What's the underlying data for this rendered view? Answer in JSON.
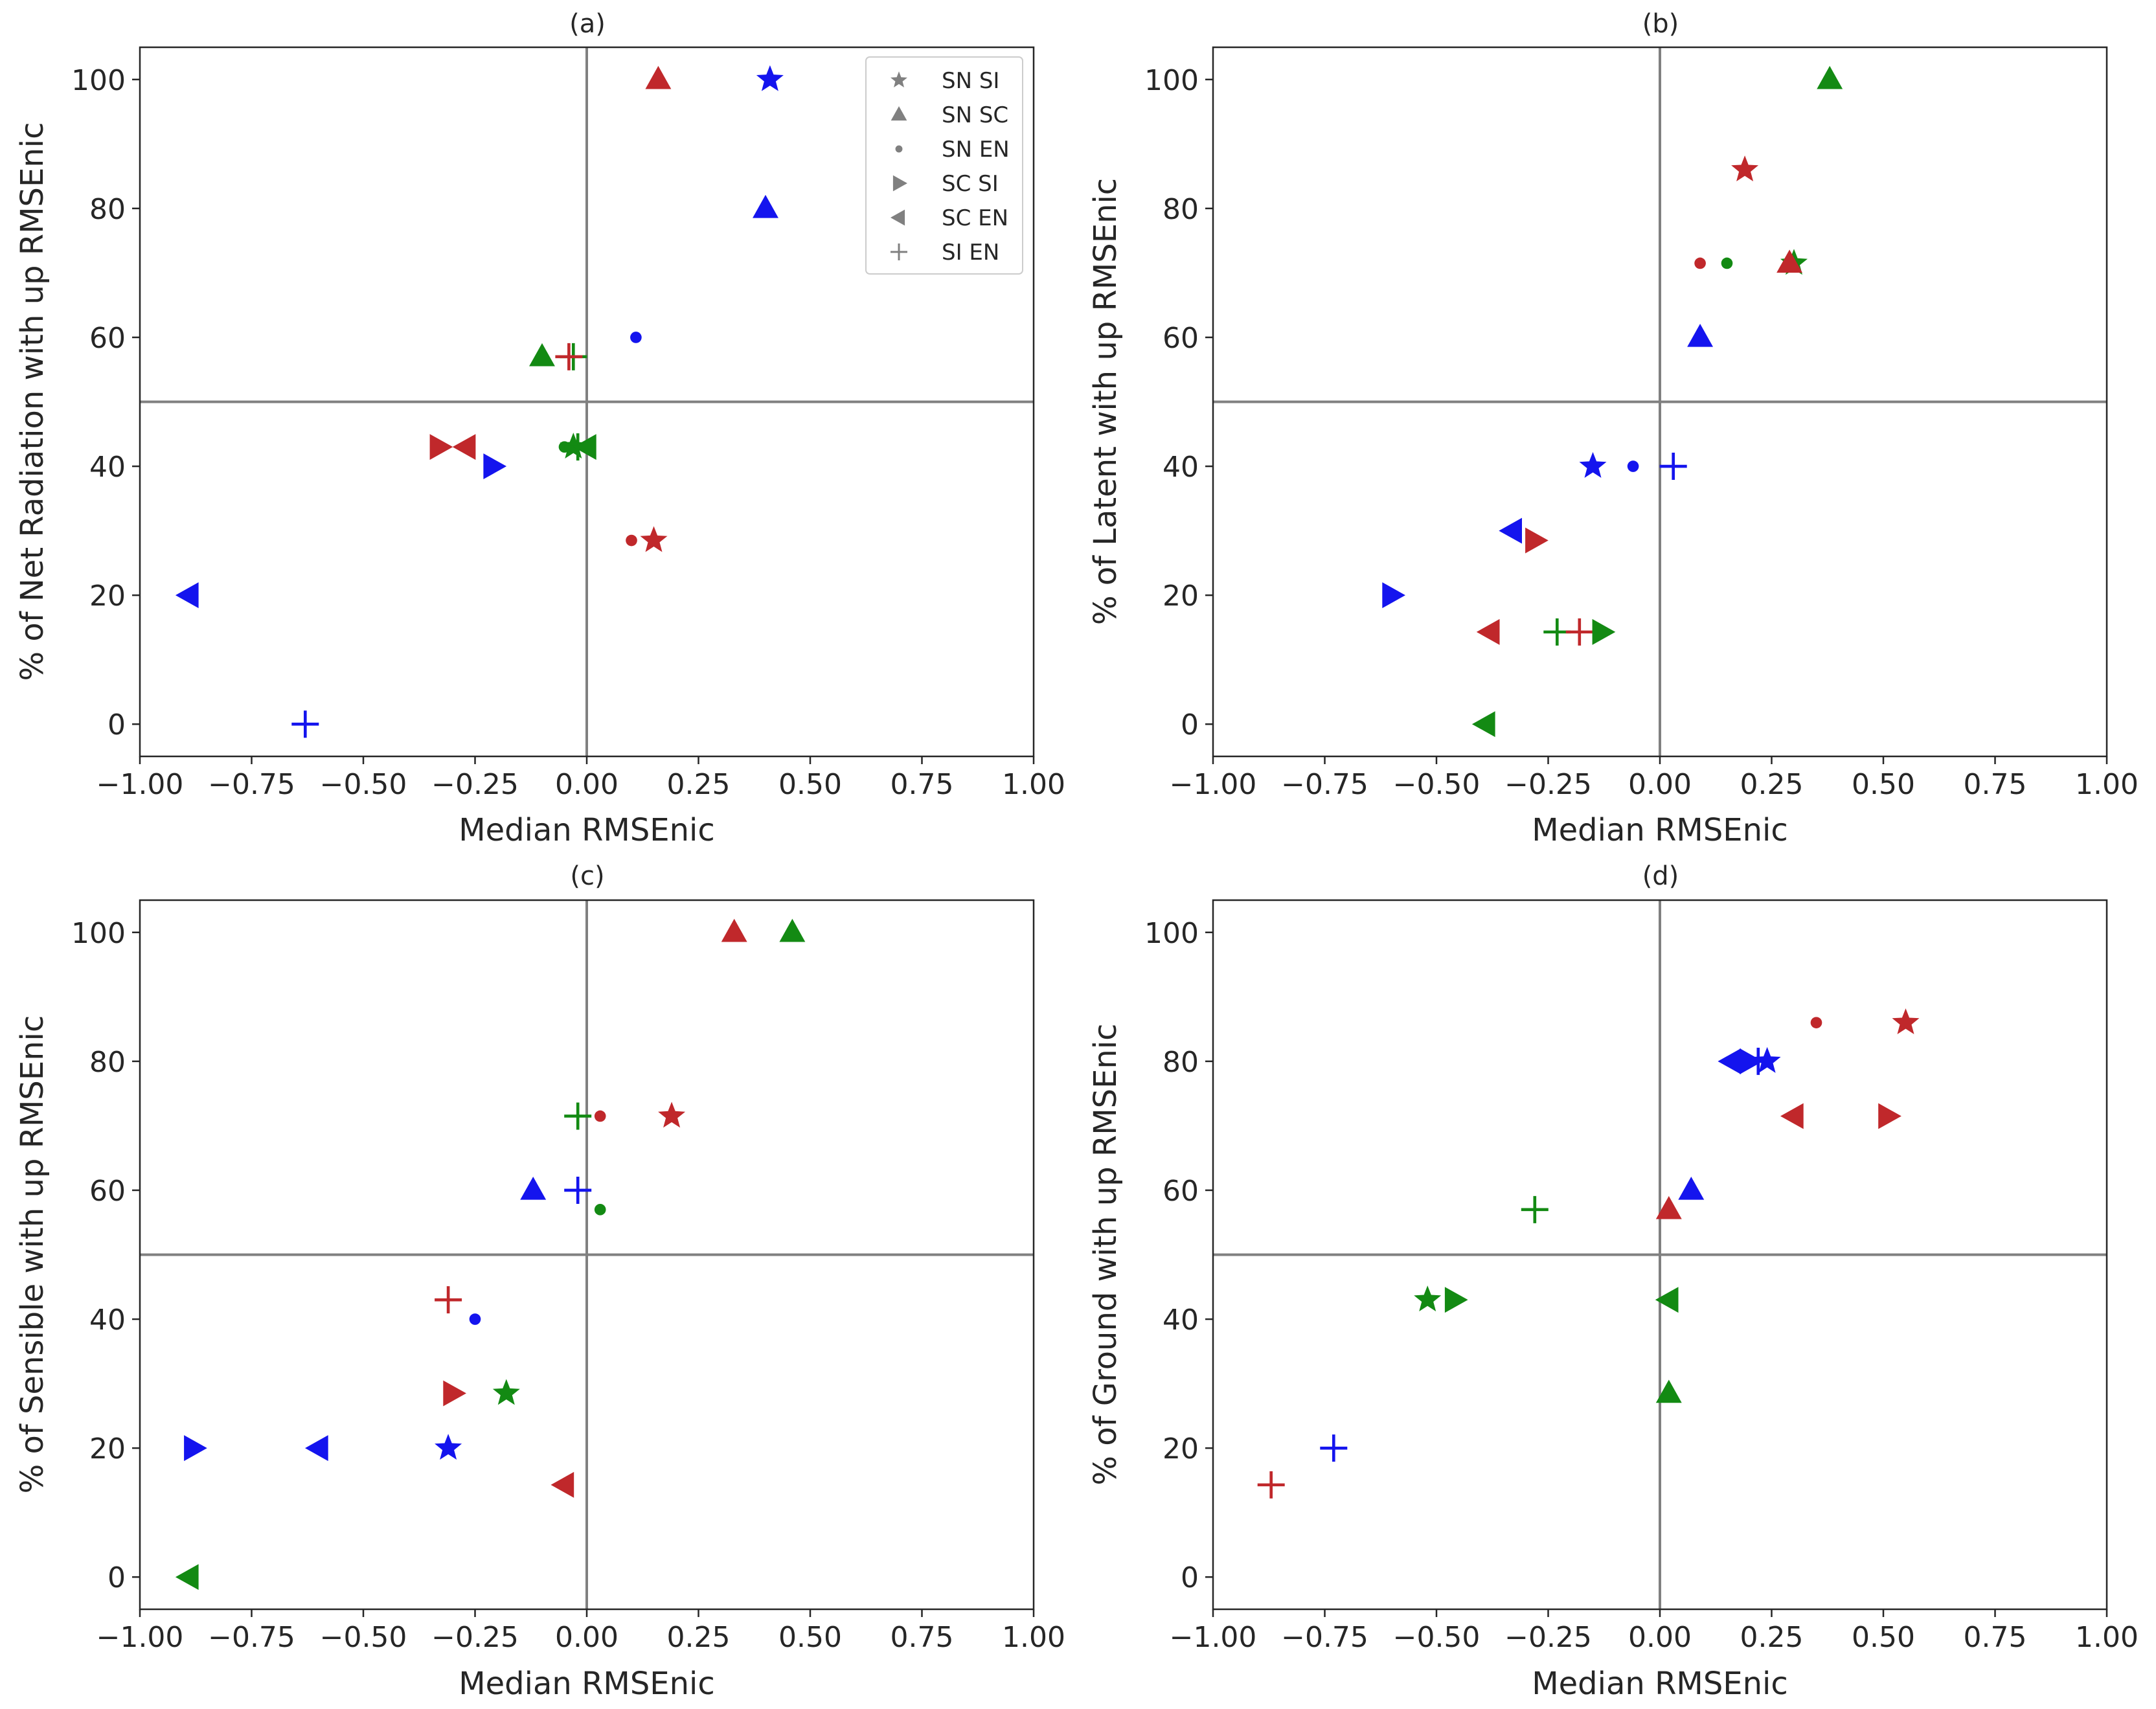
{
  "colors": {
    "red": "#c0282b",
    "green": "#138a13",
    "blue": "#1414ee",
    "legend_gray": "#808080",
    "refline": "#808080"
  },
  "legend": [
    {
      "marker": "star",
      "label": "SN SI"
    },
    {
      "marker": "tri_up",
      "label": "SN SC"
    },
    {
      "marker": "circle",
      "label": "SN EN"
    },
    {
      "marker": "tri_right",
      "label": "SC SI"
    },
    {
      "marker": "tri_left",
      "label": "SC EN"
    },
    {
      "marker": "plus",
      "label": "SI EN"
    }
  ],
  "chart_data": [
    {
      "type": "scatter",
      "title": "(a)",
      "xlabel": "Median RMSEnic",
      "ylabel": "% of Net Radiation with up RMSEnic",
      "xlim": [
        -1.0,
        1.0
      ],
      "ylim": [
        -5,
        105
      ],
      "xticks": [
        "−1.00",
        "−0.75",
        "−0.50",
        "−0.25",
        "0.00",
        "0.25",
        "0.50",
        "0.75",
        "1.00"
      ],
      "yticks": [
        "0",
        "20",
        "40",
        "60",
        "80",
        "100"
      ],
      "reference_lines": {
        "x": 0,
        "y": 50
      },
      "points": [
        {
          "color": "red",
          "marker": "tri_up",
          "x": 0.16,
          "y": 100
        },
        {
          "color": "blue",
          "marker": "star",
          "x": 0.41,
          "y": 100
        },
        {
          "color": "blue",
          "marker": "tri_up",
          "x": 0.4,
          "y": 80
        },
        {
          "color": "blue",
          "marker": "circle",
          "x": 0.11,
          "y": 60
        },
        {
          "color": "green",
          "marker": "tri_up",
          "x": -0.1,
          "y": 57
        },
        {
          "color": "green",
          "marker": "plus",
          "x": -0.03,
          "y": 57
        },
        {
          "color": "red",
          "marker": "plus",
          "x": -0.04,
          "y": 57
        },
        {
          "color": "red",
          "marker": "tri_right",
          "x": -0.33,
          "y": 43
        },
        {
          "color": "red",
          "marker": "tri_left",
          "x": -0.27,
          "y": 43
        },
        {
          "color": "blue",
          "marker": "tri_right",
          "x": -0.21,
          "y": 40
        },
        {
          "color": "green",
          "marker": "circle",
          "x": -0.05,
          "y": 43
        },
        {
          "color": "green",
          "marker": "star",
          "x": -0.03,
          "y": 43
        },
        {
          "color": "green",
          "marker": "plus",
          "x": -0.02,
          "y": 43
        },
        {
          "color": "green",
          "marker": "tri_left",
          "x": 0.0,
          "y": 43
        },
        {
          "color": "red",
          "marker": "circle",
          "x": 0.1,
          "y": 28.5
        },
        {
          "color": "red",
          "marker": "star",
          "x": 0.15,
          "y": 28.5
        },
        {
          "color": "blue",
          "marker": "tri_left",
          "x": -0.89,
          "y": 20
        },
        {
          "color": "blue",
          "marker": "plus",
          "x": -0.63,
          "y": 0
        }
      ]
    },
    {
      "type": "scatter",
      "title": "(b)",
      "xlabel": "Median RMSEnic",
      "ylabel": "% of Latent with up RMSEnic",
      "xlim": [
        -1.0,
        1.0
      ],
      "ylim": [
        -5,
        105
      ],
      "xticks": [
        "−1.00",
        "−0.75",
        "−0.50",
        "−0.25",
        "0.00",
        "0.25",
        "0.50",
        "0.75",
        "1.00"
      ],
      "yticks": [
        "0",
        "20",
        "40",
        "60",
        "80",
        "100"
      ],
      "reference_lines": {
        "x": 0,
        "y": 50
      },
      "points": [
        {
          "color": "green",
          "marker": "tri_up",
          "x": 0.38,
          "y": 100
        },
        {
          "color": "red",
          "marker": "star",
          "x": 0.19,
          "y": 86
        },
        {
          "color": "red",
          "marker": "circle",
          "x": 0.09,
          "y": 71.5
        },
        {
          "color": "green",
          "marker": "circle",
          "x": 0.15,
          "y": 71.5
        },
        {
          "color": "green",
          "marker": "star",
          "x": 0.3,
          "y": 71.5
        },
        {
          "color": "red",
          "marker": "tri_up",
          "x": 0.29,
          "y": 71.5
        },
        {
          "color": "blue",
          "marker": "tri_up",
          "x": 0.09,
          "y": 60
        },
        {
          "color": "blue",
          "marker": "star",
          "x": -0.15,
          "y": 40
        },
        {
          "color": "blue",
          "marker": "circle",
          "x": -0.06,
          "y": 40
        },
        {
          "color": "blue",
          "marker": "plus",
          "x": 0.03,
          "y": 40
        },
        {
          "color": "blue",
          "marker": "tri_left",
          "x": -0.33,
          "y": 30
        },
        {
          "color": "red",
          "marker": "tri_right",
          "x": -0.28,
          "y": 28.5
        },
        {
          "color": "blue",
          "marker": "tri_right",
          "x": -0.6,
          "y": 20
        },
        {
          "color": "red",
          "marker": "tri_left",
          "x": -0.38,
          "y": 14.3
        },
        {
          "color": "green",
          "marker": "plus",
          "x": -0.23,
          "y": 14.3
        },
        {
          "color": "red",
          "marker": "plus",
          "x": -0.18,
          "y": 14.3
        },
        {
          "color": "green",
          "marker": "tri_right",
          "x": -0.13,
          "y": 14.3
        },
        {
          "color": "green",
          "marker": "tri_left",
          "x": -0.39,
          "y": 0
        }
      ]
    },
    {
      "type": "scatter",
      "title": "(c)",
      "xlabel": "Median RMSEnic",
      "ylabel": "% of Sensible with up RMSEnic",
      "xlim": [
        -1.0,
        1.0
      ],
      "ylim": [
        -5,
        105
      ],
      "xticks": [
        "−1.00",
        "−0.75",
        "−0.50",
        "−0.25",
        "0.00",
        "0.25",
        "0.50",
        "0.75",
        "1.00"
      ],
      "yticks": [
        "0",
        "20",
        "40",
        "60",
        "80",
        "100"
      ],
      "reference_lines": {
        "x": 0,
        "y": 50
      },
      "points": [
        {
          "color": "red",
          "marker": "tri_up",
          "x": 0.33,
          "y": 100
        },
        {
          "color": "green",
          "marker": "tri_up",
          "x": 0.46,
          "y": 100
        },
        {
          "color": "green",
          "marker": "plus",
          "x": -0.02,
          "y": 71.5
        },
        {
          "color": "red",
          "marker": "circle",
          "x": 0.03,
          "y": 71.5
        },
        {
          "color": "red",
          "marker": "star",
          "x": 0.19,
          "y": 71.5
        },
        {
          "color": "blue",
          "marker": "tri_up",
          "x": -0.12,
          "y": 60
        },
        {
          "color": "blue",
          "marker": "plus",
          "x": -0.02,
          "y": 60
        },
        {
          "color": "green",
          "marker": "circle",
          "x": 0.03,
          "y": 57
        },
        {
          "color": "red",
          "marker": "plus",
          "x": -0.31,
          "y": 43
        },
        {
          "color": "blue",
          "marker": "circle",
          "x": -0.25,
          "y": 40
        },
        {
          "color": "red",
          "marker": "tri_right",
          "x": -0.3,
          "y": 28.5
        },
        {
          "color": "green",
          "marker": "star",
          "x": -0.18,
          "y": 28.5
        },
        {
          "color": "blue",
          "marker": "tri_right",
          "x": -0.88,
          "y": 20
        },
        {
          "color": "blue",
          "marker": "tri_left",
          "x": -0.6,
          "y": 20
        },
        {
          "color": "blue",
          "marker": "star",
          "x": -0.31,
          "y": 20
        },
        {
          "color": "red",
          "marker": "tri_left",
          "x": -0.05,
          "y": 14.3
        },
        {
          "color": "green",
          "marker": "tri_left",
          "x": -0.89,
          "y": 0
        }
      ]
    },
    {
      "type": "scatter",
      "title": "(d)",
      "xlabel": "Median RMSEnic",
      "ylabel": "% of Ground with up RMSEnic",
      "xlim": [
        -1.0,
        1.0
      ],
      "ylim": [
        -5,
        105
      ],
      "xticks": [
        "−1.00",
        "−0.75",
        "−0.50",
        "−0.25",
        "0.00",
        "0.25",
        "0.50",
        "0.75",
        "1.00"
      ],
      "yticks": [
        "0",
        "20",
        "40",
        "60",
        "80",
        "100"
      ],
      "reference_lines": {
        "x": 0,
        "y": 50
      },
      "points": [
        {
          "color": "red",
          "marker": "circle",
          "x": 0.35,
          "y": 86
        },
        {
          "color": "red",
          "marker": "star",
          "x": 0.55,
          "y": 86
        },
        {
          "color": "blue",
          "marker": "tri_left",
          "x": 0.16,
          "y": 80
        },
        {
          "color": "blue",
          "marker": "tri_right",
          "x": 0.2,
          "y": 80
        },
        {
          "color": "blue",
          "marker": "plus",
          "x": 0.22,
          "y": 80
        },
        {
          "color": "blue",
          "marker": "star",
          "x": 0.24,
          "y": 80
        },
        {
          "color": "red",
          "marker": "tri_left",
          "x": 0.3,
          "y": 71.5
        },
        {
          "color": "red",
          "marker": "tri_right",
          "x": 0.51,
          "y": 71.5
        },
        {
          "color": "blue",
          "marker": "tri_up",
          "x": 0.07,
          "y": 60
        },
        {
          "color": "red",
          "marker": "tri_up",
          "x": 0.02,
          "y": 57
        },
        {
          "color": "green",
          "marker": "plus",
          "x": -0.28,
          "y": 57
        },
        {
          "color": "green",
          "marker": "star",
          "x": -0.52,
          "y": 43
        },
        {
          "color": "green",
          "marker": "tri_right",
          "x": -0.46,
          "y": 43
        },
        {
          "color": "green",
          "marker": "tri_left",
          "x": 0.02,
          "y": 43
        },
        {
          "color": "green",
          "marker": "tri_up",
          "x": 0.02,
          "y": 28.5
        },
        {
          "color": "blue",
          "marker": "plus",
          "x": -0.73,
          "y": 20
        },
        {
          "color": "red",
          "marker": "plus",
          "x": -0.87,
          "y": 14.3
        }
      ]
    }
  ]
}
